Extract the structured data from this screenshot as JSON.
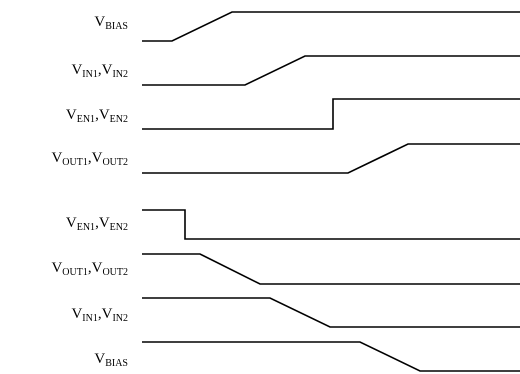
{
  "signals": [
    {
      "id": "bias-up",
      "main": "V",
      "parts": [
        {
          "sub": "BIAS"
        }
      ]
    },
    {
      "id": "in-up",
      "main": "V",
      "parts": [
        {
          "sub": "IN1"
        },
        {
          "text": ",V"
        },
        {
          "sub": "IN2"
        }
      ]
    },
    {
      "id": "en-up",
      "main": "V",
      "parts": [
        {
          "sub": "EN1"
        },
        {
          "text": ",V"
        },
        {
          "sub": "EN2"
        }
      ]
    },
    {
      "id": "out-up",
      "main": "V",
      "parts": [
        {
          "sub": "OUT1"
        },
        {
          "text": ",V"
        },
        {
          "sub": "OUT2"
        }
      ]
    },
    {
      "id": "en-down",
      "main": "V",
      "parts": [
        {
          "sub": "EN1"
        },
        {
          "text": ",V"
        },
        {
          "sub": "EN2"
        }
      ]
    },
    {
      "id": "out-down",
      "main": "V",
      "parts": [
        {
          "sub": "OUT1"
        },
        {
          "text": ",V"
        },
        {
          "sub": "OUT2"
        }
      ]
    },
    {
      "id": "in-down",
      "main": "V",
      "parts": [
        {
          "sub": "IN1"
        },
        {
          "text": ",V"
        },
        {
          "sub": "IN2"
        }
      ]
    },
    {
      "id": "bias-down",
      "main": "V",
      "parts": [
        {
          "sub": "BIAS"
        }
      ]
    }
  ],
  "colors": {
    "trace": "#000000",
    "background": "#ffffff"
  }
}
